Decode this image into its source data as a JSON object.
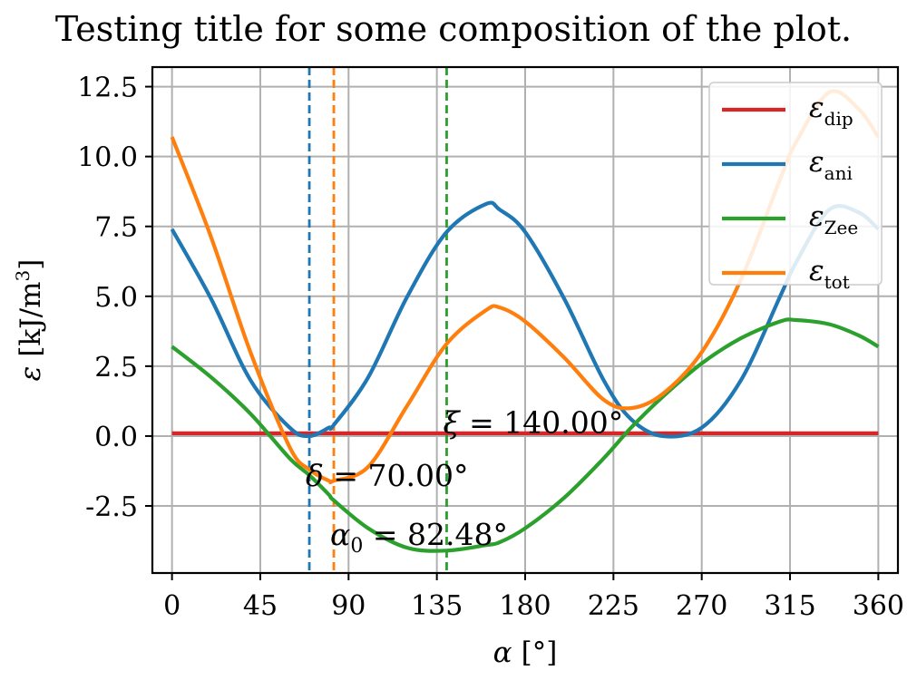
{
  "chart_data": {
    "type": "line",
    "title": "Testing title for some composition of the plot.",
    "xlabel_symbol": "α",
    "xlabel_unit": "[°]",
    "ylabel_symbol": "ε",
    "ylabel_unit": "[kJ/m",
    "ylabel_unit_sup": "3",
    "ylabel_unit_end": "]",
    "xlim": [
      -10,
      370
    ],
    "ylim": [
      -4.9,
      13.2
    ],
    "xticks": [
      0,
      45,
      90,
      135,
      180,
      225,
      270,
      315,
      360
    ],
    "xtick_labels": [
      "0",
      "45",
      "90",
      "135",
      "180",
      "225",
      "270",
      "315",
      "360"
    ],
    "yticks": [
      -2.5,
      0,
      2.5,
      5,
      7.5,
      10,
      12.5
    ],
    "ytick_labels": [
      "-2.5",
      "0.0",
      "2.5",
      "5.0",
      "7.5",
      "10.0",
      "12.5"
    ],
    "grid": true,
    "legend_position": "top-right",
    "x": [
      0,
      20,
      40,
      60,
      70,
      80,
      82.48,
      100,
      120,
      140,
      160,
      167,
      180,
      200,
      220,
      234,
      250,
      270,
      290,
      310,
      318,
      335,
      350,
      360
    ],
    "series": [
      {
        "name": "ε",
        "name_sub": "dip",
        "color": "#d62728",
        "values": [
          0.1,
          0.1,
          0.1,
          0.1,
          0.1,
          0.1,
          0.1,
          0.1,
          0.1,
          0.1,
          0.1,
          0.1,
          0.1,
          0.1,
          0.1,
          0.1,
          0.1,
          0.1,
          0.1,
          0.1,
          0.1,
          0.1,
          0.1,
          0.1
        ]
      },
      {
        "name": "ε",
        "name_sub": "ani",
        "color": "#1f77b4",
        "values": [
          7.4,
          4.9,
          2.0,
          0.3,
          0.0,
          0.3,
          0.4,
          2.1,
          5.0,
          7.3,
          8.3,
          8.1,
          7.3,
          4.9,
          2.0,
          0.6,
          0.0,
          0.3,
          2.0,
          5.0,
          6.2,
          8.1,
          8.0,
          7.4
        ]
      },
      {
        "name": "ε",
        "name_sub": "Zee",
        "color": "#2ca02c",
        "values": [
          3.2,
          2.1,
          0.8,
          -0.8,
          -1.4,
          -2.1,
          -2.3,
          -3.3,
          -4.0,
          -4.1,
          -3.9,
          -3.8,
          -3.3,
          -2.2,
          -0.8,
          0.3,
          1.4,
          2.6,
          3.5,
          4.1,
          4.15,
          4.0,
          3.6,
          3.2
        ]
      },
      {
        "name": "ε",
        "name_sub": "tot",
        "color": "#ff7f0e",
        "values": [
          10.7,
          7.1,
          3.0,
          -0.4,
          -1.2,
          -1.6,
          -1.6,
          -1.1,
          1.1,
          3.3,
          4.5,
          4.6,
          4.1,
          2.8,
          1.3,
          1.0,
          1.5,
          3.0,
          5.6,
          9.2,
          10.5,
          12.3,
          11.7,
          10.7
        ]
      }
    ],
    "vlines": [
      {
        "x": 70,
        "color": "#1f77b4"
      },
      {
        "x": 82.48,
        "color": "#ff7f0e"
      },
      {
        "x": 140,
        "color": "#2ca02c"
      }
    ],
    "annotations": [
      {
        "symbol": "ξ",
        "sub": "",
        "text": " = 140.00°",
        "x": 140,
        "y": 0.5
      },
      {
        "symbol": "δ",
        "sub": "",
        "text": " = 70.00°",
        "x": 70,
        "y": -1.4
      },
      {
        "symbol": "α",
        "sub": "0",
        "text": " = 82.48°",
        "x": 82.48,
        "y": -3.5
      }
    ]
  }
}
